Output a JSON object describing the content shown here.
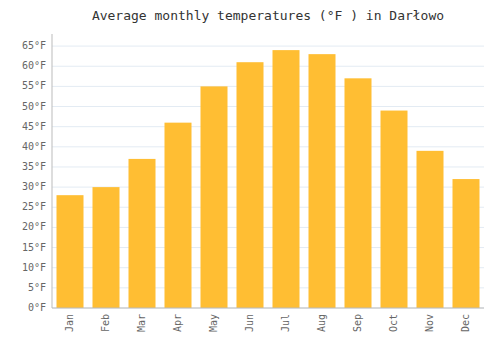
{
  "chart_data": {
    "type": "bar",
    "title": "Average monthly temperatures (°F ) in Darłowo",
    "categories": [
      "Jan",
      "Feb",
      "Mar",
      "Apr",
      "May",
      "Jun",
      "Jul",
      "Aug",
      "Sep",
      "Oct",
      "Nov",
      "Dec"
    ],
    "values": [
      28,
      30,
      37,
      46,
      55,
      61,
      64,
      63,
      57,
      49,
      39,
      32
    ],
    "color": "#FFBE33",
    "ylim": [
      0,
      68
    ],
    "yticks": [
      {
        "value": 0,
        "label": "0°F"
      },
      {
        "value": 5,
        "label": "5°F"
      },
      {
        "value": 10,
        "label": "10°F"
      },
      {
        "value": 15,
        "label": "15°F"
      },
      {
        "value": 20,
        "label": "20°F"
      },
      {
        "value": 25,
        "label": "25°F"
      },
      {
        "value": 30,
        "label": "30°F"
      },
      {
        "value": 35,
        "label": "35°F"
      },
      {
        "value": 40,
        "label": "40°F"
      },
      {
        "value": 45,
        "label": "45°F"
      },
      {
        "value": 50,
        "label": "50°F"
      },
      {
        "value": 55,
        "label": "55°F"
      },
      {
        "value": 60,
        "label": "60°F"
      },
      {
        "value": 65,
        "label": "65°F"
      }
    ],
    "grid": true
  }
}
